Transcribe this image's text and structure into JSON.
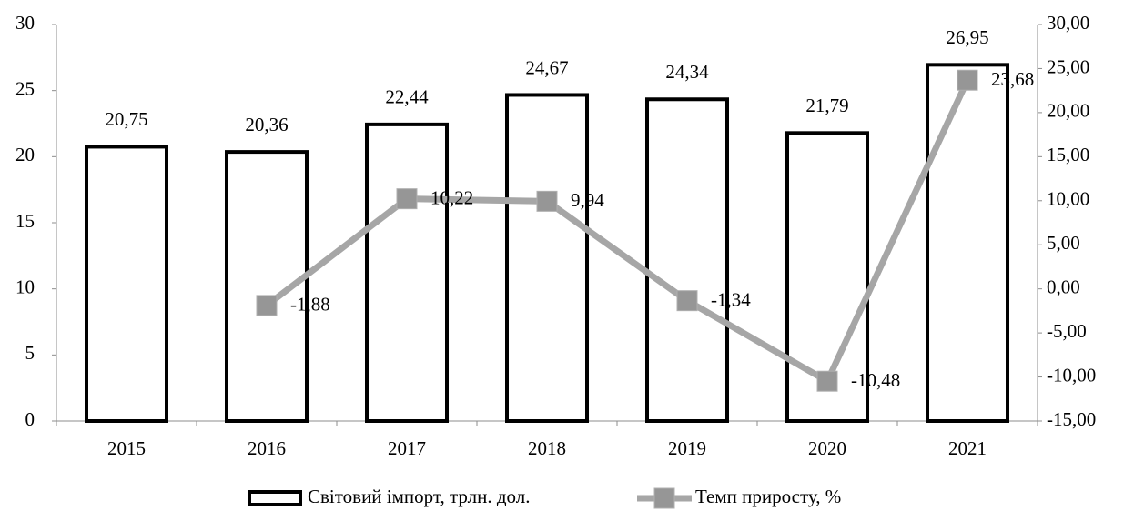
{
  "chart_data": {
    "type": "bar",
    "categories": [
      "2015",
      "2016",
      "2017",
      "2018",
      "2019",
      "2020",
      "2021"
    ],
    "series": [
      {
        "name": "Світовий імпорт, трлн. дол.",
        "type": "bar",
        "color": "#000000",
        "values": [
          20.75,
          20.36,
          22.44,
          24.67,
          24.34,
          21.79,
          26.95
        ],
        "value_labels": [
          "20,75",
          "20,36",
          "22,44",
          "24,67",
          "24,34",
          "21,79",
          "26,95"
        ]
      },
      {
        "name": "Темп приросту, %",
        "type": "line",
        "axis": "y2",
        "color": "#a6a6a6",
        "values": [
          null,
          -1.88,
          10.22,
          9.94,
          -1.34,
          -10.48,
          23.68
        ],
        "value_labels": [
          null,
          "-1,88",
          "10,22",
          "9,94",
          "-1,34",
          "-10,48",
          "23,68"
        ]
      }
    ],
    "ylim": [
      0,
      30
    ],
    "yticks": [
      0,
      5,
      10,
      15,
      20,
      25,
      30
    ],
    "y2lim": [
      -15,
      30
    ],
    "y2ticks": [
      {
        "value": -15,
        "label": "-15,00"
      },
      {
        "value": -10,
        "label": "-10,00"
      },
      {
        "value": -5,
        "label": "-5,00"
      },
      {
        "value": 0,
        "label": "0,00"
      },
      {
        "value": 5,
        "label": "5,00"
      },
      {
        "value": 10,
        "label": "10,00"
      },
      {
        "value": 15,
        "label": "15,00"
      },
      {
        "value": 20,
        "label": "20,00"
      },
      {
        "value": 25,
        "label": "25,00"
      },
      {
        "value": 30,
        "label": "30,00"
      }
    ],
    "legend": "bottom",
    "grid": false
  }
}
